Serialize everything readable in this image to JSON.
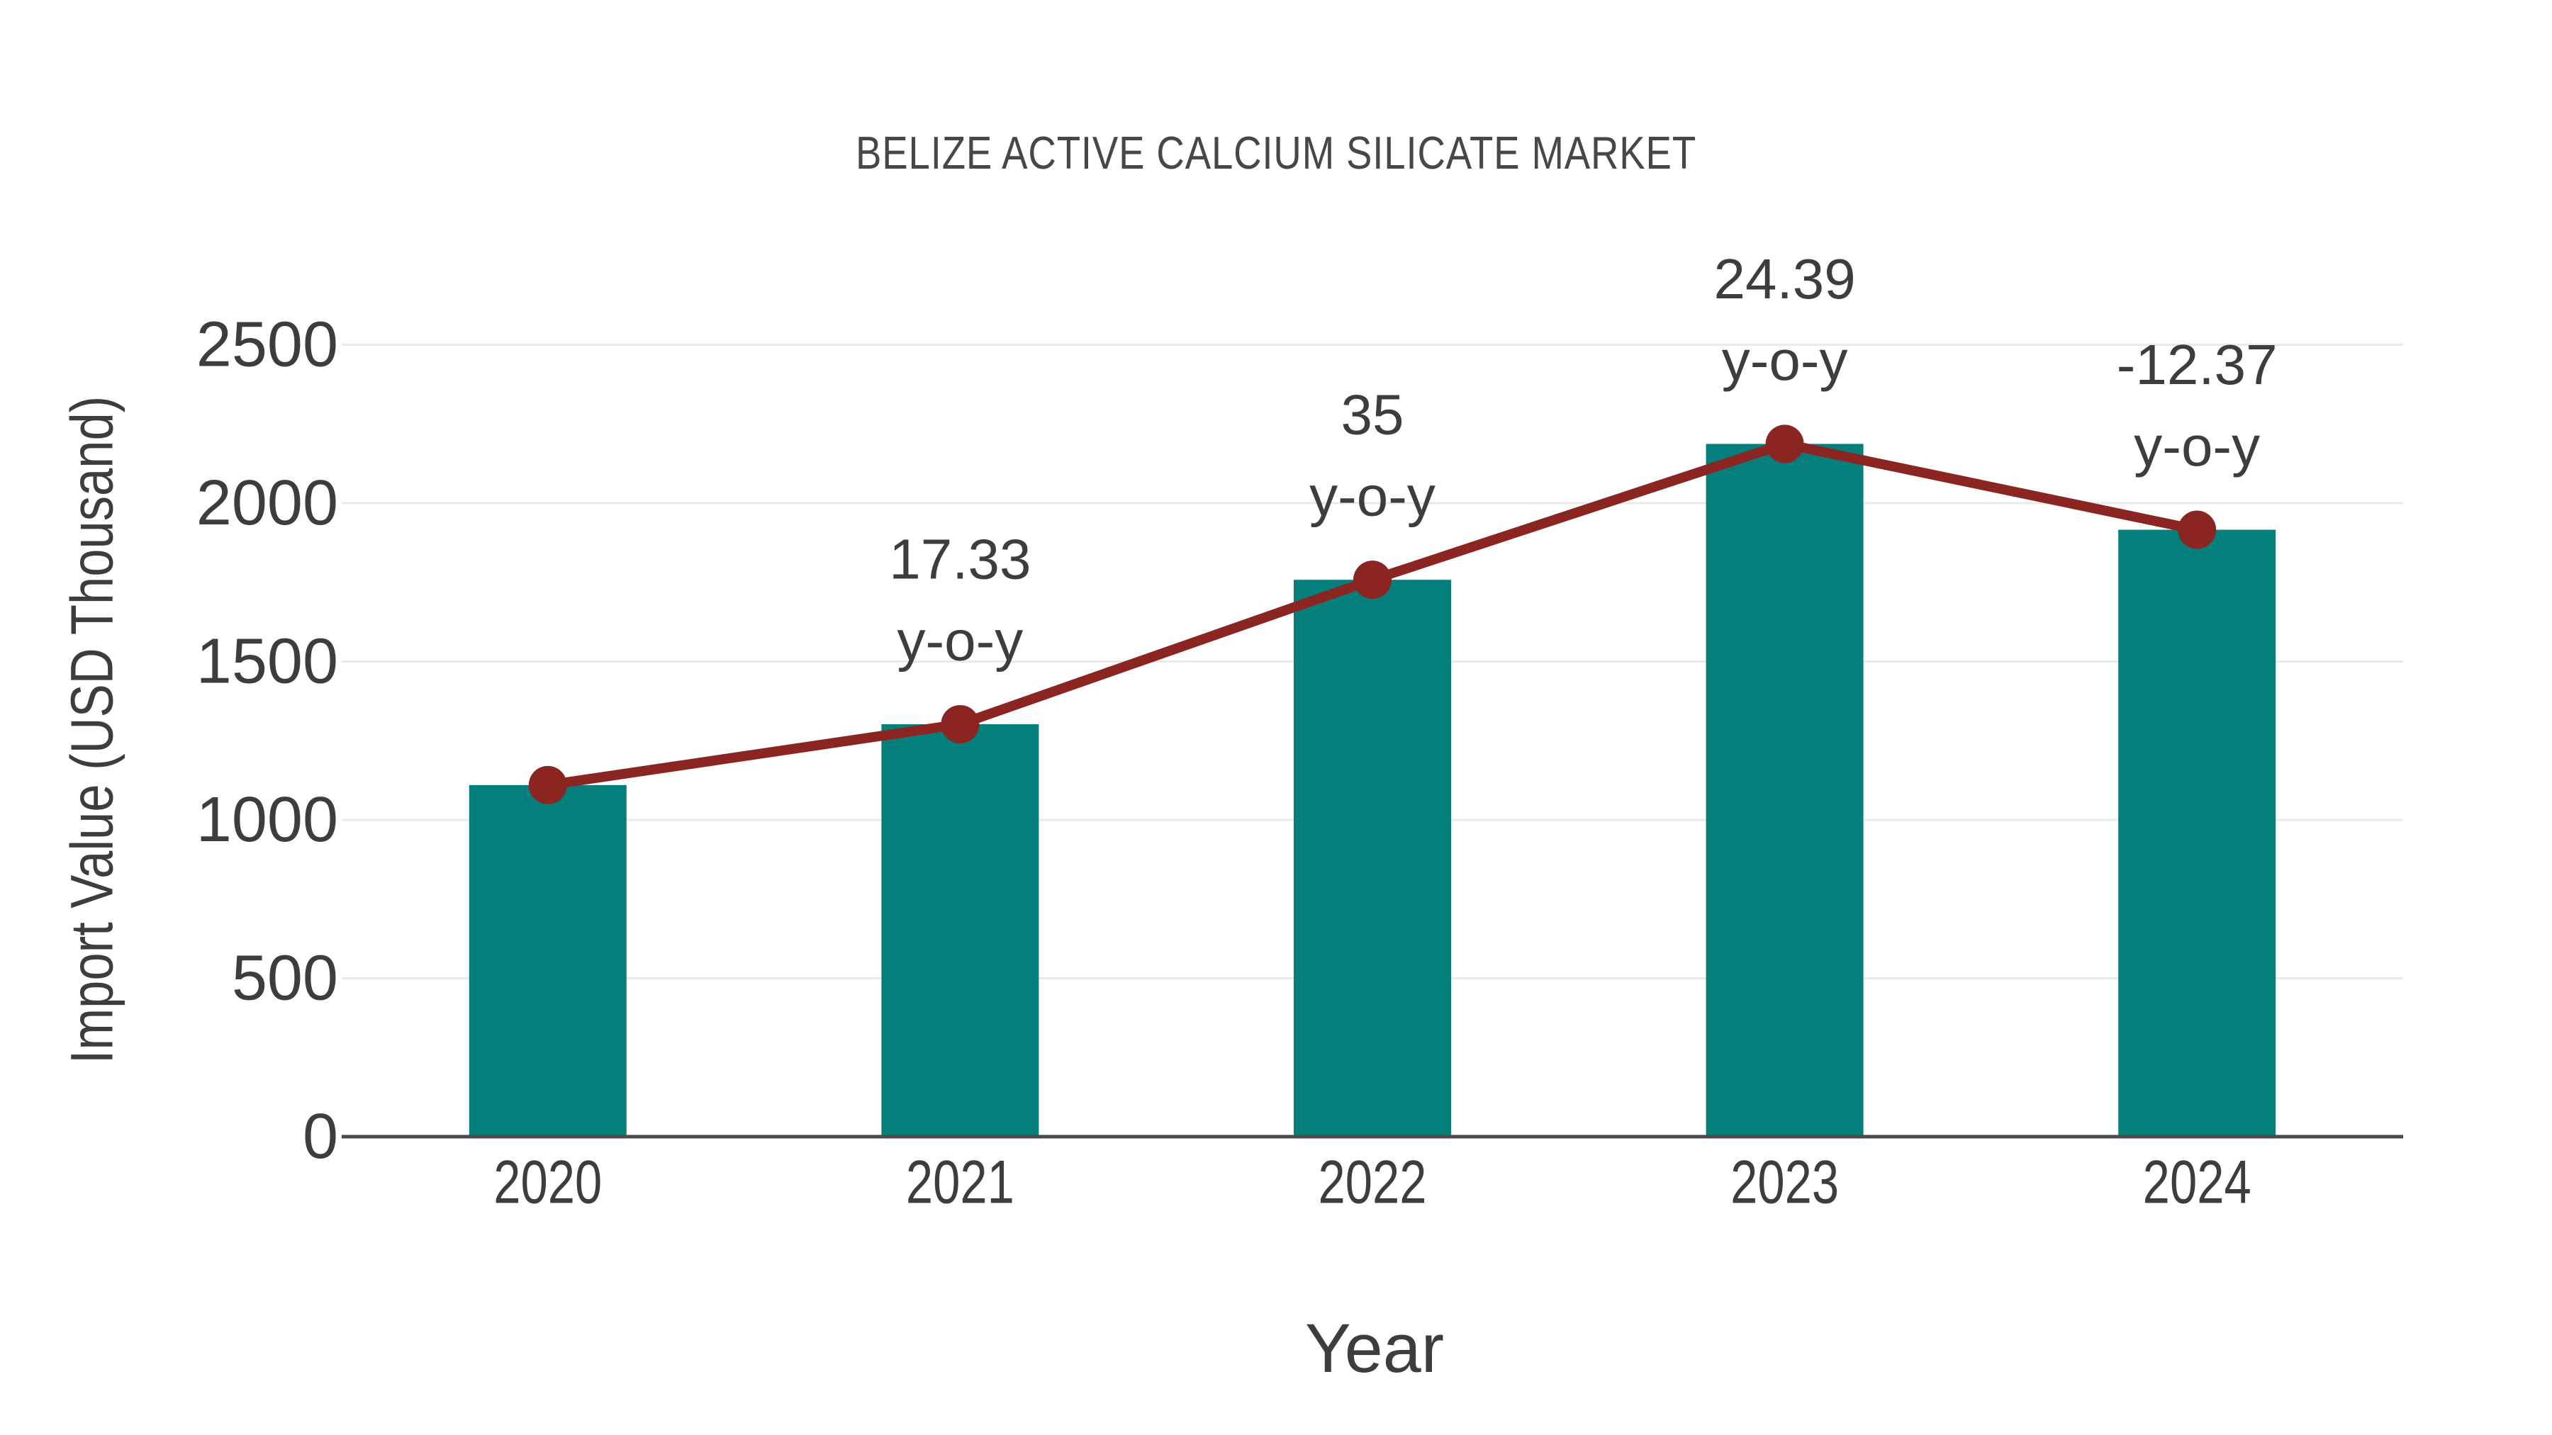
{
  "chart_data": {
    "type": "bar",
    "subtype": "bar-with-line-overlay",
    "title": "BELIZE ACTIVE CALCIUM SILICATE MARKET",
    "xlabel": "Year",
    "ylabel": "Import Value (USD Thousand)",
    "categories": [
      "2020",
      "2021",
      "2022",
      "2023",
      "2024"
    ],
    "series": [
      {
        "name": "Import Value",
        "type": "bar",
        "color": "#047f7c",
        "values": [
          1110,
          1302,
          1758,
          2187,
          1916
        ]
      },
      {
        "name": "Import Value trend",
        "type": "line",
        "color": "#8b2522",
        "values": [
          1110,
          1302,
          1758,
          2187,
          1916
        ]
      }
    ],
    "annotations": [
      {
        "category": "2021",
        "value_label": "17.33",
        "suffix_label": "y-o-y"
      },
      {
        "category": "2022",
        "value_label": "35",
        "suffix_label": "y-o-y"
      },
      {
        "category": "2023",
        "value_label": "24.39",
        "suffix_label": "y-o-y"
      },
      {
        "category": "2024",
        "value_label": "-12.37",
        "suffix_label": "y-o-y"
      }
    ],
    "yticks": [
      0,
      500,
      1000,
      1500,
      2000,
      2500
    ],
    "ylim": [
      0,
      2630
    ],
    "grid": true,
    "legend_position": "none"
  },
  "style": {
    "background": "#ffffff",
    "bar_color": "#047f7c",
    "line_color": "#8b2522",
    "marker_color": "#8b2522",
    "grid_color": "#e9e9e9",
    "axis_line_color": "#4a4a4a",
    "text_color": "#3d3d3d",
    "title_color": "#474747"
  }
}
